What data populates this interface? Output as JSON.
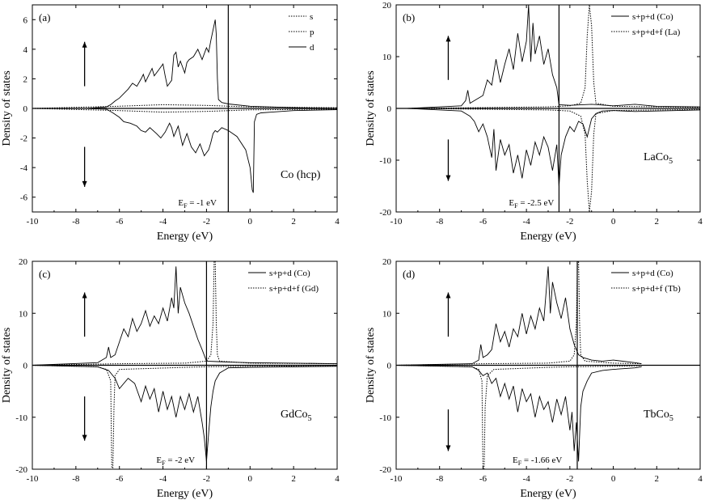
{
  "chart_data": [
    {
      "type": "line",
      "panel_label": "(a)",
      "system": "Co (hcp)",
      "fermi_label": "E",
      "fermi_sub": "F",
      "fermi_value": " = -1 eV",
      "fermi_energy": -1,
      "xlabel": "Energy (eV)",
      "ylabel": "Density of states",
      "xlim": [
        -10,
        4
      ],
      "ylim": [
        -7,
        7
      ],
      "xticks": [
        -10,
        -8,
        -6,
        -4,
        -2,
        0,
        2,
        4
      ],
      "yticks": [
        -6,
        -4,
        -2,
        0,
        2,
        4,
        6
      ],
      "legend": [
        {
          "name": "s",
          "style": "dotted"
        },
        {
          "name": "p",
          "style": "dotted"
        },
        {
          "name": "d",
          "style": "solid"
        }
      ],
      "spin_up_arrow_y": [
        1.5,
        4.5
      ],
      "spin_down_arrow_y": [
        -2.6,
        -5.3
      ],
      "series": [
        {
          "name": "d up",
          "style": "solid",
          "x": [
            -10,
            -7.5,
            -6.6,
            -6.4,
            -6.2,
            -6.0,
            -5.8,
            -5.6,
            -5.4,
            -5.2,
            -5.0,
            -4.9,
            -4.8,
            -4.6,
            -4.5,
            -4.4,
            -4.2,
            -4.0,
            -3.9,
            -3.8,
            -3.6,
            -3.5,
            -3.4,
            -3.3,
            -3.2,
            -3.0,
            -2.9,
            -2.8,
            -2.6,
            -2.4,
            -2.2,
            -2.0,
            -1.9,
            -1.8,
            -1.7,
            -1.6,
            -1.55,
            -1.5,
            -1.45,
            -1.3,
            -1.0,
            0,
            2,
            4
          ],
          "y": [
            0,
            0,
            0.1,
            0.25,
            0.5,
            0.7,
            1.0,
            1.3,
            1.7,
            1.5,
            2.0,
            2.3,
            1.8,
            2.4,
            2.7,
            2.2,
            2.6,
            3.0,
            2.2,
            1.5,
            1.9,
            3.6,
            3.8,
            2.8,
            3.2,
            2.4,
            3.1,
            3.3,
            3.5,
            4.0,
            3.3,
            4.1,
            3.8,
            4.6,
            5.3,
            6.0,
            5.0,
            2.0,
            0.6,
            0.4,
            0.3,
            0.15,
            0.05,
            0
          ]
        },
        {
          "name": "d down",
          "style": "solid",
          "x": [
            -10,
            -7.5,
            -6.6,
            -6.3,
            -6.0,
            -5.8,
            -5.5,
            -5.2,
            -5.0,
            -4.8,
            -4.6,
            -4.3,
            -4.1,
            -3.9,
            -3.7,
            -3.6,
            -3.5,
            -3.3,
            -3.1,
            -2.9,
            -2.7,
            -2.5,
            -2.3,
            -2.1,
            -1.9,
            -1.8,
            -1.7,
            -1.6,
            -1.5,
            -1.3,
            -1.0,
            -0.6,
            -0.2,
            0.0,
            0.1,
            0.15,
            0.2,
            0.3,
            0.5,
            1,
            2,
            4
          ],
          "y": [
            0,
            0,
            -0.05,
            -0.3,
            -0.6,
            -0.9,
            -1.0,
            -1.2,
            -1.5,
            -1.6,
            -1.3,
            -1.7,
            -2.0,
            -1.6,
            -1.0,
            -1.3,
            -1.9,
            -1.2,
            -2.5,
            -1.7,
            -2.6,
            -3.0,
            -2.4,
            -3.2,
            -2.8,
            -2.3,
            -1.7,
            -1.5,
            -1.6,
            -1.3,
            -1.5,
            -1.9,
            -2.8,
            -4.0,
            -5.5,
            -5.7,
            -0.9,
            -0.4,
            -0.3,
            -0.25,
            -0.15,
            -0.08
          ]
        },
        {
          "name": "s/p up",
          "style": "dotted",
          "x": [
            -10,
            -6,
            -4,
            -2,
            0,
            4
          ],
          "y": [
            0,
            0.15,
            0.25,
            0.2,
            0.1,
            0.05
          ]
        },
        {
          "name": "s/p down",
          "style": "dotted",
          "x": [
            -10,
            -6,
            -4,
            -2,
            0,
            4
          ],
          "y": [
            0,
            -0.15,
            -0.25,
            -0.2,
            -0.1,
            -0.05
          ]
        }
      ]
    },
    {
      "type": "line",
      "panel_label": "(b)",
      "system": "LaCo",
      "system_sub": "5",
      "fermi_label": "E",
      "fermi_sub": "F",
      "fermi_value": " = -2.5 eV",
      "fermi_energy": -2.5,
      "xlabel": "Energy (eV)",
      "ylabel": "Density of states",
      "xlim": [
        -10,
        4
      ],
      "ylim": [
        -20,
        20
      ],
      "xticks": [
        -10,
        -8,
        -6,
        -4,
        -2,
        0,
        2,
        4
      ],
      "yticks": [
        -20,
        -10,
        0,
        10,
        20
      ],
      "legend": [
        {
          "name": "s+p+d (Co)",
          "style": "solid"
        },
        {
          "name": "s+p+d+f (La)",
          "style": "dotted"
        }
      ],
      "spin_up_arrow_y": [
        5.5,
        14
      ],
      "spin_down_arrow_y": [
        -6,
        -14
      ],
      "series": [
        {
          "name": "Co up",
          "style": "solid",
          "x": [
            -9.5,
            -7,
            -6.8,
            -6.7,
            -6.6,
            -6.4,
            -6.0,
            -5.8,
            -5.6,
            -5.4,
            -5.2,
            -5.0,
            -4.8,
            -4.6,
            -4.4,
            -4.2,
            -4.0,
            -3.9,
            -3.8,
            -3.7,
            -3.6,
            -3.4,
            -3.2,
            -3.0,
            -2.8,
            -2.6,
            -2.5,
            -2.0,
            -1.0,
            0,
            1,
            2,
            4
          ],
          "y": [
            0,
            0.5,
            1.5,
            3.5,
            1.0,
            1.5,
            2.5,
            5.5,
            4.5,
            9.5,
            5.0,
            8.5,
            11.5,
            7.5,
            14.5,
            9.0,
            13.0,
            20.0,
            9.0,
            16.5,
            10.5,
            14.0,
            8.5,
            11.5,
            6.5,
            4.0,
            0.7,
            0.6,
            0.8,
            0.5,
            0.8,
            0.4,
            0.3
          ]
        },
        {
          "name": "Co down",
          "style": "solid",
          "x": [
            -9.5,
            -7,
            -6.8,
            -6.6,
            -6.4,
            -6.2,
            -6.0,
            -5.8,
            -5.6,
            -5.5,
            -5.4,
            -5.2,
            -5.0,
            -4.8,
            -4.6,
            -4.4,
            -4.2,
            -4.0,
            -3.8,
            -3.6,
            -3.4,
            -3.2,
            -3.0,
            -2.8,
            -2.6,
            -2.5,
            -2.4,
            -2.2,
            -2.0,
            -1.8,
            -1.6,
            -1.4,
            -1.2,
            -1.0,
            -0.8,
            -0.5,
            0,
            1,
            2,
            4
          ],
          "y": [
            0,
            -0.5,
            -1.0,
            -1.5,
            -2.5,
            -4.5,
            -3.0,
            -5.5,
            -9.5,
            -4.0,
            -12.0,
            -6.0,
            -9.0,
            -7.0,
            -12.5,
            -9.0,
            -13.5,
            -8.0,
            -11.0,
            -6.5,
            -9.0,
            -5.5,
            -7.5,
            -12.0,
            -7.0,
            -15.0,
            -9.0,
            -5.5,
            -3.5,
            -4.5,
            -2.5,
            -3.0,
            -5.5,
            -2.0,
            -1.0,
            -0.5,
            -0.4,
            -0.6,
            -0.5,
            -0.3
          ]
        },
        {
          "name": "La up",
          "style": "dotted",
          "x": [
            -9.5,
            -3,
            -2,
            -1.5,
            -1.3,
            -1.2,
            -1.1,
            -1.0,
            -0.9,
            -0.8,
            0,
            4
          ],
          "y": [
            0,
            0.3,
            0.5,
            1.0,
            4.0,
            14.0,
            20.0,
            16.0,
            5.0,
            1.0,
            0.4,
            0.2
          ]
        },
        {
          "name": "La down",
          "style": "dotted",
          "x": [
            -9.5,
            -3,
            -2,
            -1.5,
            -1.3,
            -1.2,
            -1.1,
            -1.0,
            -0.9,
            -0.8,
            0,
            4
          ],
          "y": [
            0,
            -0.3,
            -0.5,
            -1.5,
            -5.0,
            -14.0,
            -20.0,
            -16.0,
            -5.0,
            -1.0,
            -0.4,
            -0.2
          ]
        }
      ]
    },
    {
      "type": "line",
      "panel_label": "(c)",
      "system": "GdCo",
      "system_sub": "5",
      "fermi_label": "E",
      "fermi_sub": "F",
      "fermi_value": " = -2 eV",
      "fermi_energy": -2,
      "xlabel": "Energy (eV)",
      "ylabel": "Density of states",
      "xlim": [
        -10,
        4
      ],
      "ylim": [
        -20,
        20
      ],
      "xticks": [
        -10,
        -8,
        -6,
        -4,
        -2,
        0,
        2,
        4
      ],
      "yticks": [
        -20,
        -10,
        0,
        10,
        20
      ],
      "legend": [
        {
          "name": "s+p+d (Co)",
          "style": "solid"
        },
        {
          "name": "s+p+d+f (Gd)",
          "style": "dotted"
        }
      ],
      "spin_up_arrow_y": [
        5.5,
        14
      ],
      "spin_down_arrow_y": [
        -6,
        -14.5
      ],
      "series": [
        {
          "name": "Co up",
          "style": "solid",
          "x": [
            -10,
            -7,
            -6.6,
            -6.5,
            -6.4,
            -6.2,
            -6.0,
            -5.8,
            -5.6,
            -5.4,
            -5.2,
            -5.0,
            -4.8,
            -4.6,
            -4.4,
            -4.2,
            -4.0,
            -3.8,
            -3.6,
            -3.5,
            -3.4,
            -3.3,
            -3.2,
            -3.0,
            -2.8,
            -2.6,
            -2.4,
            -2.2,
            -2.0,
            -1.5,
            -1.0,
            0,
            2,
            4
          ],
          "y": [
            0,
            0.5,
            1.5,
            3.5,
            1.5,
            2.0,
            4.5,
            7.0,
            5.5,
            9.0,
            6.5,
            8.0,
            10.5,
            7.5,
            9.5,
            8.0,
            11.0,
            8.5,
            13.0,
            11.0,
            19.0,
            10.0,
            15.0,
            12.0,
            10.0,
            7.5,
            5.0,
            3.0,
            0.8,
            0.7,
            0.6,
            0.5,
            0.4,
            0.3
          ]
        },
        {
          "name": "Co down",
          "style": "solid",
          "x": [
            -10,
            -7,
            -6.5,
            -6.2,
            -6.0,
            -5.6,
            -5.3,
            -5.0,
            -4.8,
            -4.6,
            -4.4,
            -4.2,
            -4.0,
            -3.8,
            -3.6,
            -3.4,
            -3.2,
            -3.0,
            -2.8,
            -2.6,
            -2.4,
            -2.2,
            -2.1,
            -2.0,
            -1.9,
            -1.8,
            -1.7,
            -1.6,
            -1.4,
            -1.2,
            -1.0,
            0,
            2,
            4
          ],
          "y": [
            0,
            -0.3,
            -1.0,
            -2.5,
            -4.5,
            -2.5,
            -3.5,
            -7.0,
            -4.0,
            -6.5,
            -4.5,
            -9.0,
            -5.0,
            -8.5,
            -6.0,
            -10.0,
            -6.0,
            -8.5,
            -5.5,
            -9.0,
            -6.0,
            -11.0,
            -14.0,
            -18.5,
            -13.0,
            -8.0,
            -5.0,
            -3.0,
            -1.5,
            -1.0,
            -0.5,
            -0.4,
            -0.3,
            -0.2
          ]
        },
        {
          "name": "Gd up",
          "style": "dotted",
          "x": [
            -10,
            -6,
            -3,
            -2,
            -1.8,
            -1.7,
            -1.65,
            -1.6,
            -1.55,
            -1.5,
            -1.4,
            0,
            4
          ],
          "y": [
            0,
            0.3,
            0.4,
            0.8,
            2.0,
            8.0,
            20.0,
            20.0,
            8.0,
            2.0,
            0.8,
            0.4,
            0.3
          ]
        },
        {
          "name": "Gd down",
          "style": "dotted",
          "x": [
            -10,
            -7,
            -6.6,
            -6.4,
            -6.35,
            -6.3,
            -6.25,
            -6.2,
            -6.0,
            -3,
            -2,
            0,
            4
          ],
          "y": [
            0,
            -0.3,
            -0.8,
            -3.0,
            -20.0,
            -20.0,
            -8.0,
            -2.0,
            -0.8,
            -0.4,
            -0.3,
            -0.2,
            -0.1
          ]
        }
      ]
    },
    {
      "type": "line",
      "panel_label": "(d)",
      "system": "TbCo",
      "system_sub": "5",
      "fermi_label": "E",
      "fermi_sub": "F",
      "fermi_value": " = -1.66 eV",
      "fermi_energy": -1.66,
      "xlabel": "Energy (eV)",
      "ylabel": "Density of states",
      "xlim": [
        -10,
        4
      ],
      "ylim": [
        -20,
        20
      ],
      "xticks": [
        -10,
        -8,
        -6,
        -4,
        -2,
        0,
        2,
        4
      ],
      "yticks": [
        -20,
        -10,
        0,
        10,
        20
      ],
      "legend": [
        {
          "name": "s+p+d (Co)",
          "style": "solid"
        },
        {
          "name": "s+p+d+f (Tb)",
          "style": "dotted"
        }
      ],
      "spin_up_arrow_y": [
        5.5,
        14
      ],
      "spin_down_arrow_y": [
        -8.5,
        -16.5
      ],
      "series": [
        {
          "name": "Co up",
          "style": "solid",
          "x": [
            -10,
            -6.5,
            -6.2,
            -6.1,
            -6.0,
            -5.8,
            -5.6,
            -5.4,
            -5.2,
            -5.0,
            -4.8,
            -4.6,
            -4.4,
            -4.2,
            -4.0,
            -3.8,
            -3.6,
            -3.4,
            -3.2,
            -3.0,
            -2.9,
            -2.8,
            -2.6,
            -2.4,
            -2.2,
            -2.0,
            -1.8,
            -1.7,
            -1.6,
            -1.4,
            -1.0,
            -0.5,
            0,
            1,
            1.3
          ],
          "y": [
            0,
            0.3,
            1.0,
            4.0,
            1.5,
            2.0,
            3.0,
            8.0,
            4.5,
            6.5,
            3.5,
            7.0,
            5.5,
            10.0,
            6.0,
            9.5,
            7.0,
            11.0,
            8.5,
            19.0,
            10.0,
            16.0,
            12.0,
            9.0,
            13.0,
            7.0,
            4.0,
            3.0,
            2.0,
            1.5,
            1.0,
            0.8,
            1.0,
            0.5,
            0.3
          ]
        },
        {
          "name": "Co down",
          "style": "solid",
          "x": [
            -10,
            -6.5,
            -6.2,
            -6.0,
            -5.8,
            -5.6,
            -5.4,
            -5.2,
            -5.0,
            -4.8,
            -4.6,
            -4.4,
            -4.2,
            -4.0,
            -3.8,
            -3.6,
            -3.4,
            -3.2,
            -3.0,
            -2.8,
            -2.6,
            -2.4,
            -2.2,
            -2.0,
            -1.9,
            -1.8,
            -1.7,
            -1.6,
            -1.5,
            -1.4,
            -1.2,
            -1.0,
            -0.5,
            0,
            1,
            1.3
          ],
          "y": [
            0,
            -0.3,
            -1.0,
            -2.0,
            -1.5,
            -3.5,
            -2.5,
            -6.0,
            -3.5,
            -6.5,
            -4.0,
            -9.0,
            -4.5,
            -7.0,
            -5.5,
            -10.0,
            -6.0,
            -8.5,
            -7.0,
            -11.0,
            -6.5,
            -9.5,
            -6.0,
            -12.5,
            -9.0,
            -16.5,
            -11.0,
            -18.5,
            -8.0,
            -5.0,
            -3.0,
            -1.5,
            -1.0,
            -0.8,
            -0.5,
            -0.3
          ]
        },
        {
          "name": "Tb up",
          "style": "dotted",
          "x": [
            -10,
            -6,
            -3,
            -2.0,
            -1.8,
            -1.7,
            -1.65,
            -1.6,
            -1.55,
            -1.5,
            -1.3,
            0,
            1.3
          ],
          "y": [
            0,
            0.3,
            0.4,
            0.8,
            2.0,
            8.0,
            20.0,
            20.0,
            8.0,
            2.0,
            0.8,
            0.4,
            0.3
          ]
        },
        {
          "name": "Tb down",
          "style": "dotted",
          "x": [
            -10,
            -6.5,
            -6.2,
            -6.05,
            -6.0,
            -5.95,
            -5.9,
            -5.8,
            -5.5,
            -3,
            -2,
            0,
            1.3
          ],
          "y": [
            0,
            -0.3,
            -0.8,
            -3.0,
            -20.0,
            -20.0,
            -8.0,
            -2.0,
            -0.8,
            -0.4,
            -0.3,
            -0.2,
            -0.1
          ]
        }
      ]
    }
  ]
}
